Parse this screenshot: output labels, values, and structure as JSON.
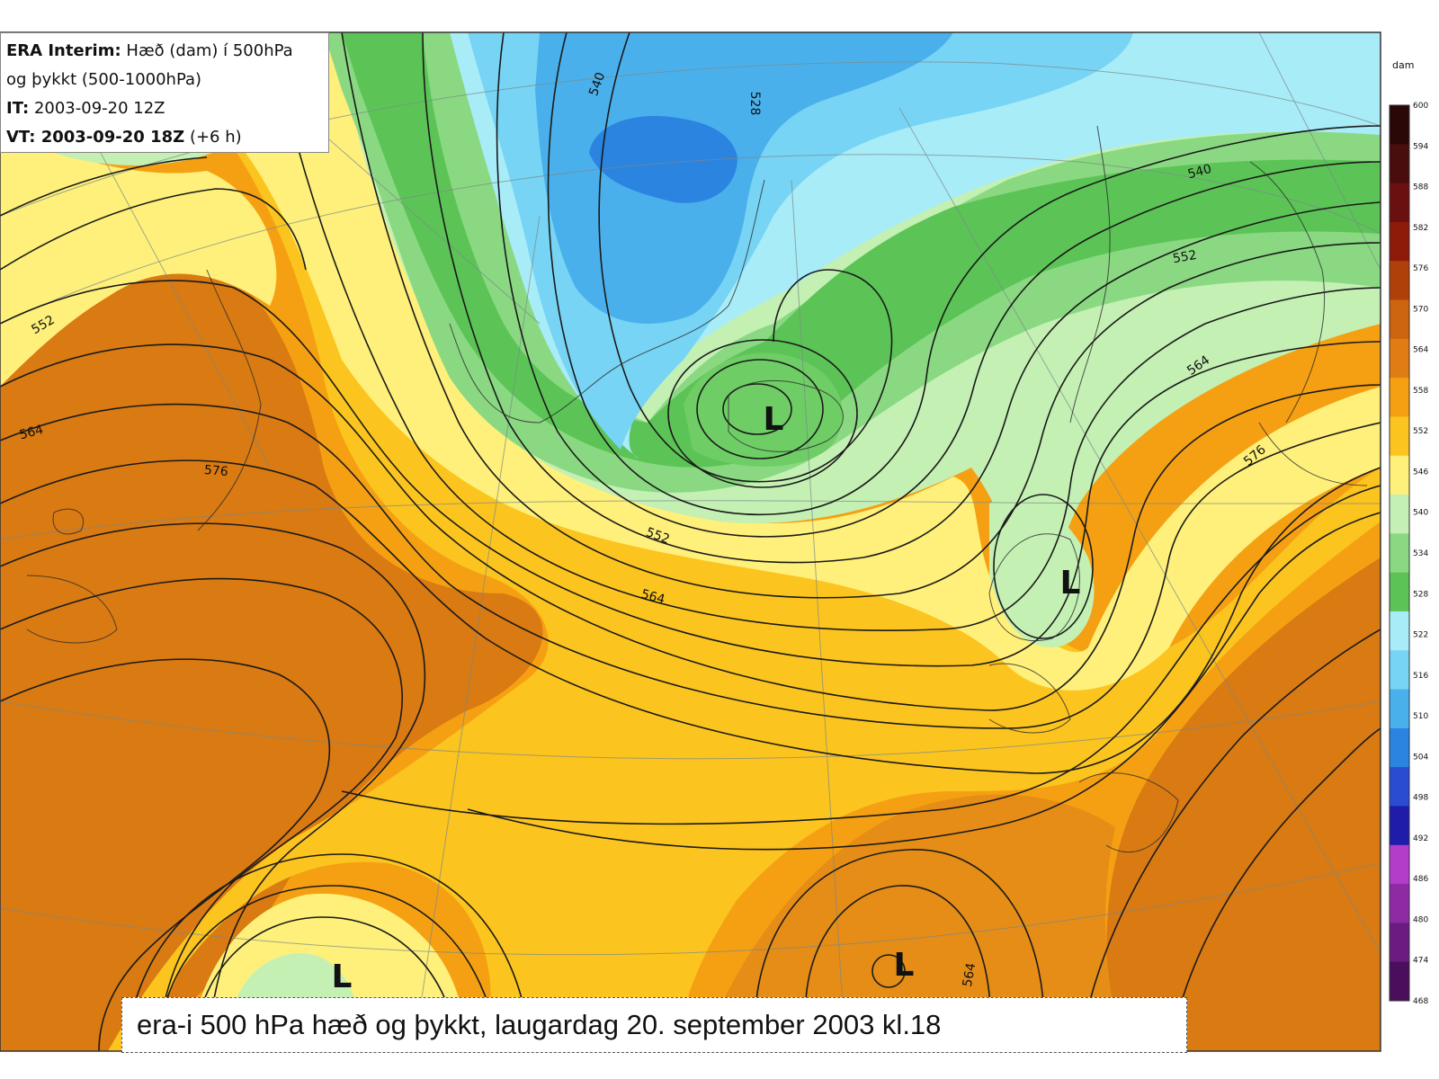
{
  "info": {
    "line1_bold": "ERA Interim:",
    "line1_rest": "Hæð (dam) í 500hPa",
    "line2": "og þykkt (500-1000hPa)",
    "line3_bold": "IT:",
    "line3_rest": "2003-09-20 12Z",
    "line4_bold": "VT: 2003-09-20 18Z",
    "line4_rest": "(+6 h)"
  },
  "caption": "era-i 500 hPa hæð og þykkt, laugardag 20. september 2003 kl.18",
  "colorbar": {
    "unit": "dam",
    "levels": [
      "600",
      "594",
      "588",
      "582",
      "576",
      "570",
      "564",
      "558",
      "552",
      "546",
      "540",
      "534",
      "528",
      "522",
      "516",
      "510",
      "504",
      "498",
      "492",
      "486",
      "480",
      "474",
      "468"
    ],
    "colors": [
      "#2a0808",
      "#4a0d0d",
      "#6a1010",
      "#8e1a0a",
      "#b0400a",
      "#cc6410",
      "#e07c14",
      "#f5a012",
      "#fcc41e",
      "#fef07a",
      "#c4f0b4",
      "#8ad982",
      "#5cc456",
      "#a8ecf8",
      "#78d4f4",
      "#4ab0ec",
      "#2a84e0",
      "#2a4cd0",
      "#1e1ca8",
      "#b33cc8",
      "#8e2aa4",
      "#6a1c80",
      "#4a0e5c"
    ]
  },
  "contour_labels": [
    {
      "text": "540",
      "rot": -70
    },
    {
      "text": "528",
      "rot": 90
    },
    {
      "text": "540",
      "rot": -15
    },
    {
      "text": "552",
      "rot": -10
    },
    {
      "text": "564",
      "rot": -35
    },
    {
      "text": "576",
      "rot": -40
    },
    {
      "text": "552",
      "rot": -30
    },
    {
      "text": "564",
      "rot": -15
    },
    {
      "text": "576",
      "rot": 5
    },
    {
      "text": "552",
      "rot": 20
    },
    {
      "text": "564",
      "rot": 15
    },
    {
      "text": "564",
      "rot": -80
    }
  ],
  "lows": [
    "L",
    "L",
    "L",
    "L"
  ]
}
